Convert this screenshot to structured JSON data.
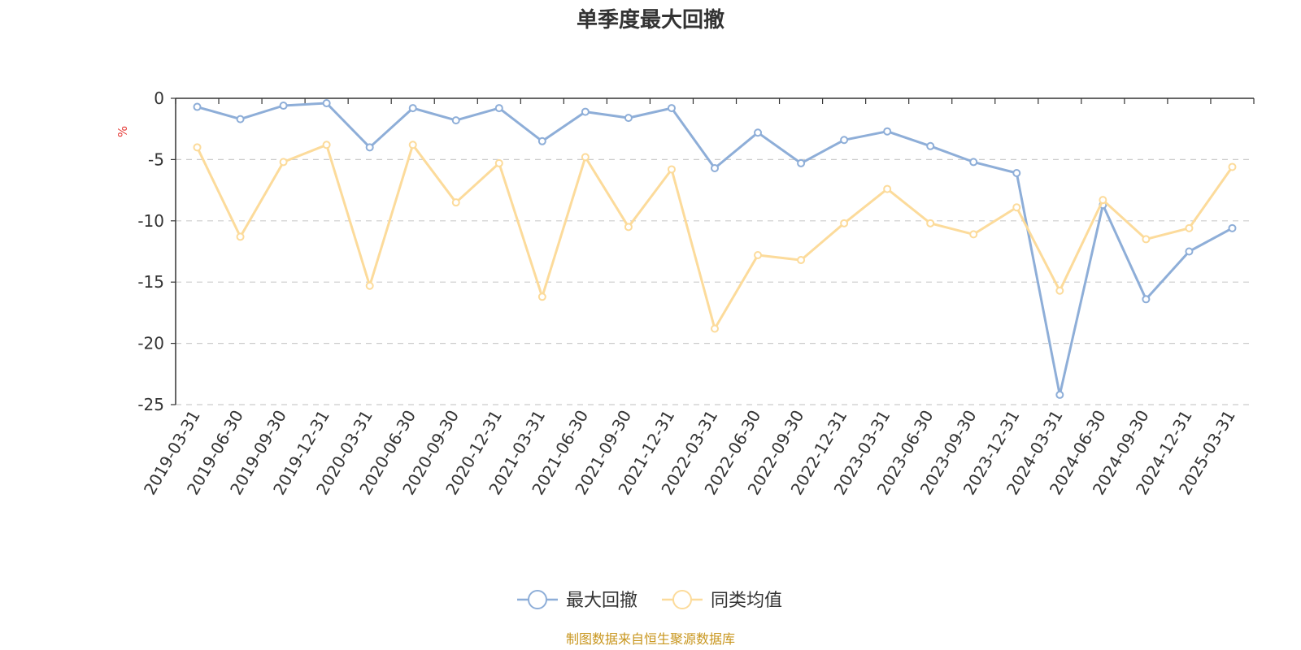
{
  "chart_data": {
    "type": "line",
    "title": "单季度最大回撤",
    "ylabel": "%",
    "ylim": [
      -25,
      0
    ],
    "yticks": [
      0,
      -5,
      -10,
      -15,
      -20,
      -25
    ],
    "grid": true,
    "legend_position": "bottom",
    "x": [
      "2019-03-31",
      "2019-06-30",
      "2019-09-30",
      "2019-12-31",
      "2020-03-31",
      "2020-06-30",
      "2020-09-30",
      "2020-12-31",
      "2021-03-31",
      "2021-06-30",
      "2021-09-30",
      "2021-12-31",
      "2022-03-31",
      "2022-06-30",
      "2022-09-30",
      "2022-12-31",
      "2023-03-31",
      "2023-06-30",
      "2023-09-30",
      "2023-12-31",
      "2024-03-31",
      "2024-06-30",
      "2024-09-30",
      "2024-12-31",
      "2025-03-31"
    ],
    "series": [
      {
        "name": "最大回撤",
        "color": "#8eaed8",
        "values": [
          -0.7,
          -1.7,
          -0.6,
          -0.4,
          -4.0,
          -0.8,
          -1.8,
          -0.8,
          -3.5,
          -1.1,
          -1.6,
          -0.8,
          -5.7,
          -2.8,
          -5.3,
          -3.4,
          -2.7,
          -3.9,
          -5.2,
          -6.1,
          -24.2,
          -8.7,
          -16.4,
          -12.5,
          -10.6
        ]
      },
      {
        "name": "同类均值",
        "color": "#fcdb9b",
        "values": [
          -4.0,
          -11.3,
          -5.2,
          -3.8,
          -15.3,
          -3.8,
          -8.5,
          -5.3,
          -16.2,
          -4.8,
          -10.5,
          -5.8,
          -18.8,
          -12.8,
          -13.2,
          -10.2,
          -7.4,
          -10.2,
          -11.1,
          -8.9,
          -15.7,
          -8.3,
          -11.5,
          -10.6,
          -5.6
        ]
      }
    ],
    "source": "制图数据来自恒生聚源数据库"
  }
}
